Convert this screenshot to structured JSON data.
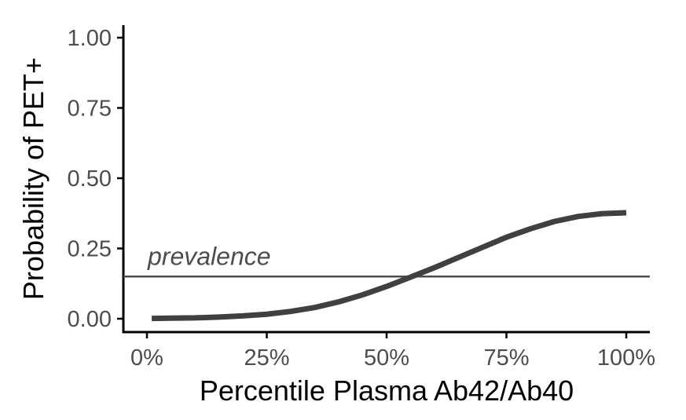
{
  "chart_data": {
    "type": "line",
    "xlabel": "Percentile Plasma Ab42/Ab40",
    "ylabel": "Probability of PET+",
    "xlim": [
      0,
      1
    ],
    "ylim": [
      0,
      1
    ],
    "x_ticks": [
      0,
      0.25,
      0.5,
      0.75,
      1.0
    ],
    "x_tick_labels": [
      "0%",
      "25%",
      "50%",
      "75%",
      "100%"
    ],
    "y_ticks": [
      0,
      0.25,
      0.5,
      0.75,
      1.0
    ],
    "y_tick_labels": [
      "0.00",
      "0.25",
      "0.50",
      "0.75",
      "1.00"
    ],
    "grid": false,
    "series": [
      {
        "x": [
          0.01,
          0.05,
          0.1,
          0.15,
          0.2,
          0.25,
          0.3,
          0.35,
          0.4,
          0.45,
          0.5,
          0.55,
          0.6,
          0.65,
          0.7,
          0.75,
          0.8,
          0.85,
          0.9,
          0.95,
          1.0
        ],
        "y": [
          0.001,
          0.002,
          0.003,
          0.006,
          0.01,
          0.016,
          0.026,
          0.04,
          0.06,
          0.085,
          0.115,
          0.148,
          0.182,
          0.218,
          0.254,
          0.29,
          0.32,
          0.346,
          0.364,
          0.374,
          0.377
        ]
      }
    ],
    "reference_line": {
      "y": 0.15,
      "label": "prevalence"
    },
    "colors": {
      "curve": "#404040",
      "reference": "#4d4d4d",
      "axis": "#000000",
      "tick_label": "#4d4d4d"
    }
  }
}
